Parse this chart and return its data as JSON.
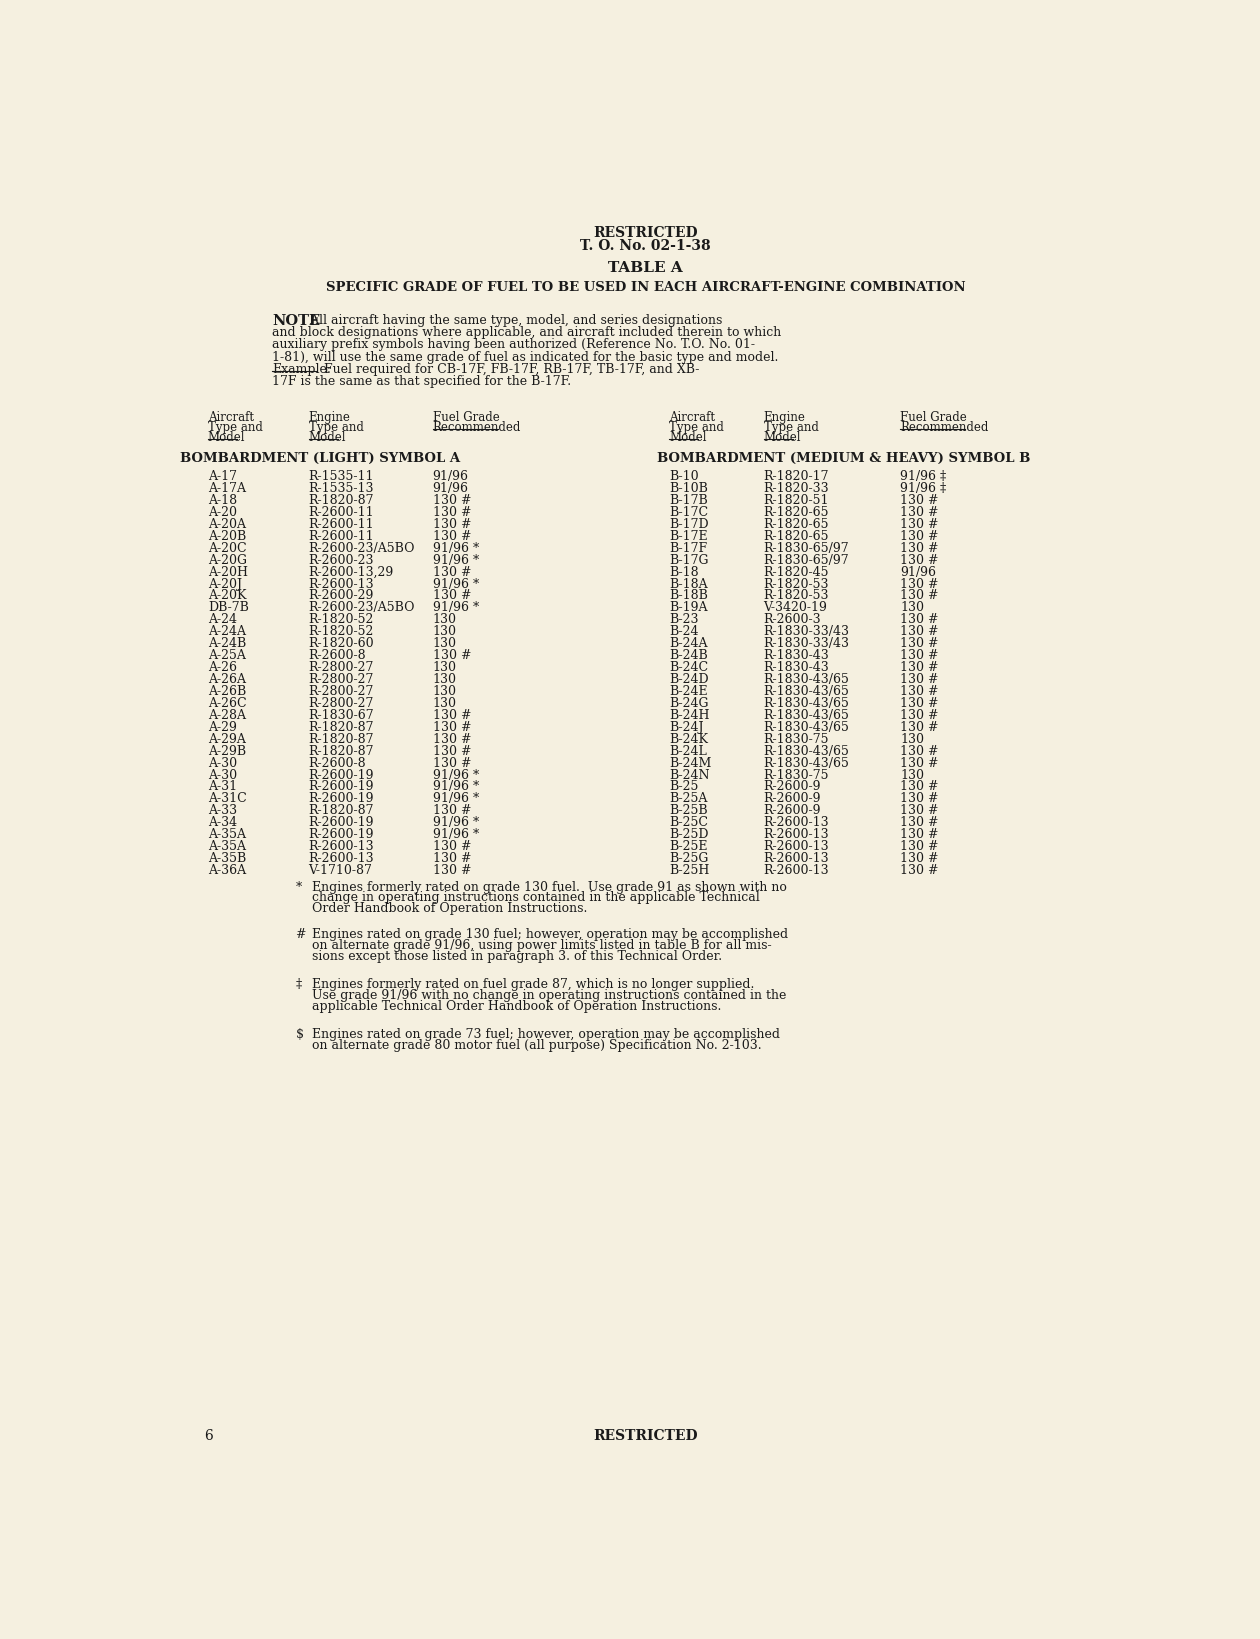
{
  "bg_color": "#f5f0e0",
  "text_color": "#1a1a1a",
  "header_line1": "RESTRICTED",
  "header_line2": "T. O. No. 02-1-38",
  "table_title": "TABLE A",
  "subtitle": "SPECIFIC GRADE OF FUEL TO BE USED IN EACH AIRCRAFT-ENGINE COMBINATION",
  "note_bold": "NOTE",
  "section_left": "BOMBARDMENT (LIGHT) SYMBOL A",
  "section_right": "BOMBARDMENT (MEDIUM & HEAVY) SYMBOL B",
  "left_data": [
    [
      "A-17",
      "R-1535-11",
      "91/96"
    ],
    [
      "A-17A",
      "R-1535-13",
      "91/96"
    ],
    [
      "A-18",
      "R-1820-87",
      "130 #"
    ],
    [
      "A-20",
      "R-2600-11",
      "130 #"
    ],
    [
      "A-20A",
      "R-2600-11",
      "130 #"
    ],
    [
      "A-20B",
      "R-2600-11",
      "130 #"
    ],
    [
      "A-20C",
      "R-2600-23/A5BO",
      "91/96 *"
    ],
    [
      "A-20G",
      "R-2600-23",
      "91/96 *"
    ],
    [
      "A-20H",
      "R-2600-13,29",
      "130 #"
    ],
    [
      "A-20J",
      "R-2600-13",
      "91/96 *"
    ],
    [
      "A-20K",
      "R-2600-29",
      "130 #"
    ],
    [
      "DB-7B",
      "R-2600-23/A5BO",
      "91/96 *"
    ],
    [
      "A-24",
      "R-1820-52",
      "130"
    ],
    [
      "A-24A",
      "R-1820-52",
      "130"
    ],
    [
      "A-24B",
      "R-1820-60",
      "130"
    ],
    [
      "A-25A",
      "R-2600-8",
      "130 #"
    ],
    [
      "A-26",
      "R-2800-27",
      "130"
    ],
    [
      "A-26A",
      "R-2800-27",
      "130"
    ],
    [
      "A-26B",
      "R-2800-27",
      "130"
    ],
    [
      "A-26C",
      "R-2800-27",
      "130"
    ],
    [
      "A-28A",
      "R-1830-67",
      "130 #"
    ],
    [
      "A-29",
      "R-1820-87",
      "130 #"
    ],
    [
      "A-29A",
      "R-1820-87",
      "130 #"
    ],
    [
      "A-29B",
      "R-1820-87",
      "130 #"
    ],
    [
      "A-30",
      "R-2600-8",
      "130 #"
    ],
    [
      "A-30",
      "R-2600-19",
      "91/96 *"
    ],
    [
      "A-31",
      "R-2600-19",
      "91/96 *"
    ],
    [
      "A-31C",
      "R-2600-19",
      "91/96 *"
    ],
    [
      "A-33",
      "R-1820-87",
      "130 #"
    ],
    [
      "A-34",
      "R-2600-19",
      "91/96 *"
    ],
    [
      "A-35A",
      "R-2600-19",
      "91/96 *"
    ],
    [
      "A-35A",
      "R-2600-13",
      "130 #"
    ],
    [
      "A-35B",
      "R-2600-13",
      "130 #"
    ],
    [
      "A-36A",
      "V-1710-87",
      "130 #"
    ]
  ],
  "right_data": [
    [
      "B-10",
      "R-1820-17",
      "91/96 ‡"
    ],
    [
      "B-10B",
      "R-1820-33",
      "91/96 ‡"
    ],
    [
      "B-17B",
      "R-1820-51",
      "130 #"
    ],
    [
      "B-17C",
      "R-1820-65",
      "130 #"
    ],
    [
      "B-17D",
      "R-1820-65",
      "130 #"
    ],
    [
      "B-17E",
      "R-1820-65",
      "130 #"
    ],
    [
      "B-17F",
      "R-1830-65/97",
      "130 #"
    ],
    [
      "B-17G",
      "R-1830-65/97",
      "130 #"
    ],
    [
      "B-18",
      "R-1820-45",
      "91/96"
    ],
    [
      "B-18A",
      "R-1820-53",
      "130 #"
    ],
    [
      "B-18B",
      "R-1820-53",
      "130 #"
    ],
    [
      "B-19A",
      "V-3420-19",
      "130"
    ],
    [
      "B-23",
      "R-2600-3",
      "130 #"
    ],
    [
      "B-24",
      "R-1830-33/43",
      "130 #"
    ],
    [
      "B-24A",
      "R-1830-33/43",
      "130 #"
    ],
    [
      "B-24B",
      "R-1830-43",
      "130 #"
    ],
    [
      "B-24C",
      "R-1830-43",
      "130 #"
    ],
    [
      "B-24D",
      "R-1830-43/65",
      "130 #"
    ],
    [
      "B-24E",
      "R-1830-43/65",
      "130 #"
    ],
    [
      "B-24G",
      "R-1830-43/65",
      "130 #"
    ],
    [
      "B-24H",
      "R-1830-43/65",
      "130 #"
    ],
    [
      "B-24J",
      "R-1830-43/65",
      "130 #"
    ],
    [
      "B-24K",
      "R-1830-75",
      "130"
    ],
    [
      "B-24L",
      "R-1830-43/65",
      "130 #"
    ],
    [
      "B-24M",
      "R-1830-43/65",
      "130 #"
    ],
    [
      "B-24N",
      "R-1830-75",
      "130"
    ],
    [
      "B-25",
      "R-2600-9",
      "130 #"
    ],
    [
      "B-25A",
      "R-2600-9",
      "130 #"
    ],
    [
      "B-25B",
      "R-2600-9",
      "130 #"
    ],
    [
      "B-25C",
      "R-2600-13",
      "130 #"
    ],
    [
      "B-25D",
      "R-2600-13",
      "130 #"
    ],
    [
      "B-25E",
      "R-2600-13",
      "130 #"
    ],
    [
      "B-25G",
      "R-2600-13",
      "130 #"
    ],
    [
      "B-25H",
      "R-2600-13",
      "130 #"
    ]
  ],
  "footnote_symbols": [
    "*",
    "#",
    "‡",
    "$"
  ],
  "footnote_texts": [
    "Engines formerly rated on grade 130 fuel.  Use grade 91 as shown with no\nchange in operating instructions contained in the applicable Technical\nOrder Handbook of Operation Instructions.",
    "Engines rated on grade 130 fuel; however, operation may be accomplished\non alternate grade 91/96, using power limits listed in table B for all mis-\nsions except those listed in paragraph 3. of this Technical Order.",
    "Engines formerly rated on fuel grade 87, which is no longer supplied.\nUse grade 91/96 with no change in operating instructions contained in the\napplicable Technical Order Handbook of Operation Instructions.",
    "Engines rated on grade 73 fuel; however, operation may be accomplished\non alternate grade 80 motor fuel (all purpose) Specification No. 2-103."
  ],
  "page_number": "6",
  "footer_text": "RESTRICTED",
  "note_lines": [
    " All aircraft having the same type, model, and series designations",
    "and block designations where applicable, and aircraft included therein to which",
    "auxiliary prefix symbols having been authorized (Reference No. T.O. No. 01-",
    "1-81), will use the same grade of fuel as indicated for the basic type and model.",
    "Example:  Fuel required for CB-17F, FB-17F, RB-17F, TB-17F, and XB-",
    "17F is the same as that specified for the B-17F."
  ]
}
